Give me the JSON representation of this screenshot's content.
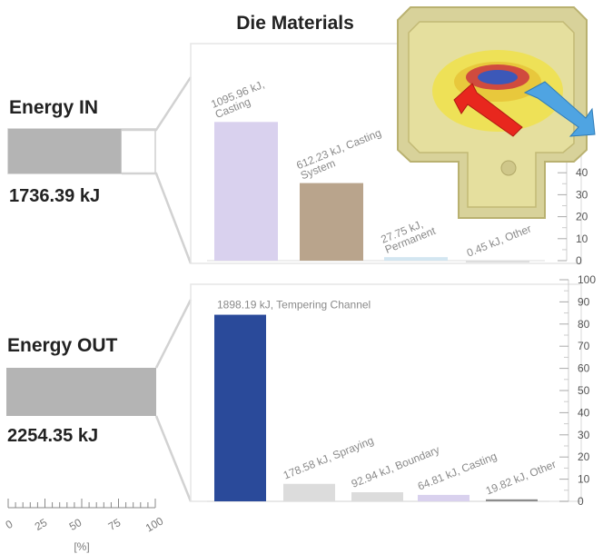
{
  "energy_in": {
    "label": "Energy IN",
    "value_text": "1736.39 kJ",
    "fraction": 0.77
  },
  "energy_out": {
    "label": "Energy OUT",
    "value_text": "2254.35 kJ",
    "fraction": 1.0
  },
  "percent_scale": {
    "ticks": [
      "0",
      "25",
      "50",
      "75",
      "100"
    ],
    "unit": "[%]"
  },
  "colors": {
    "gray_bar": "#b4b4b4",
    "casting": "#d9d1ee",
    "casting_system": "#b9a48c",
    "permanent": "#d3e6f1",
    "tempering": "#2a4a9a",
    "light_gray": "#dcdcdc",
    "other_out": "#8c8c8c"
  },
  "chart_data": [
    {
      "type": "bar",
      "title": "Die Materials",
      "ylim": [
        0,
        100
      ],
      "yticks": [
        "0",
        "10",
        "20",
        "30",
        "40"
      ],
      "labels": [
        "1095.96 kJ, Casting",
        "612.23 kJ, Casting System",
        "27.75 kJ, Permanent",
        "0.45 kJ, Other"
      ],
      "values": [
        63.1,
        35.3,
        1.6,
        0.03
      ]
    },
    {
      "type": "bar",
      "title": "",
      "ylim": [
        0,
        100
      ],
      "yticks": [
        "0",
        "10",
        "20",
        "30",
        "40",
        "50",
        "60",
        "70",
        "80",
        "90",
        "100"
      ],
      "labels": [
        "1898.19 kJ, Tempering Channel",
        "178.58 kJ, Spraying",
        "92.94 kJ, Boundary",
        "64.81 kJ, Casting",
        "19.82 kJ, Other"
      ],
      "values": [
        84.2,
        7.9,
        4.1,
        2.9,
        0.9
      ]
    }
  ]
}
